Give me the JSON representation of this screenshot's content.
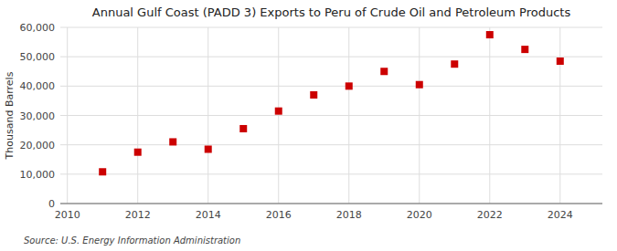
{
  "chart_data": {
    "type": "scatter",
    "title": "Annual Gulf Coast (PADD 3) Exports to Peru of Crude Oil and Petroleum Products",
    "y_label": "Thousand Barrels",
    "annotations": [
      "Source: U.S. Energy Information Administration"
    ],
    "x": [
      2011,
      2012,
      2013,
      2014,
      2015,
      2016,
      2017,
      2018,
      2019,
      2020,
      2021,
      2022,
      2023,
      2024
    ],
    "values": [
      10800,
      17500,
      21000,
      18500,
      25500,
      31500,
      37000,
      40000,
      45000,
      40500,
      47500,
      57500,
      52500,
      48500
    ],
    "color": "#cc0000",
    "marker": "square",
    "xlim": [
      2009.8,
      2025.2
    ],
    "xticks": [
      2010,
      2012,
      2014,
      2016,
      2018,
      2020,
      2022,
      2024
    ],
    "ylim": [
      0,
      60000
    ],
    "yticks": [
      0,
      {
        "value": 10000,
        "label": "10,000"
      },
      {
        "value": 20000,
        "label": "20,000"
      },
      {
        "value": 30000,
        "label": "30,000"
      },
      {
        "value": 40000,
        "label": "40,000"
      },
      {
        "value": 50000,
        "label": "50,000"
      },
      {
        "value": 60000,
        "label": "60,000"
      }
    ],
    "grid": true
  }
}
